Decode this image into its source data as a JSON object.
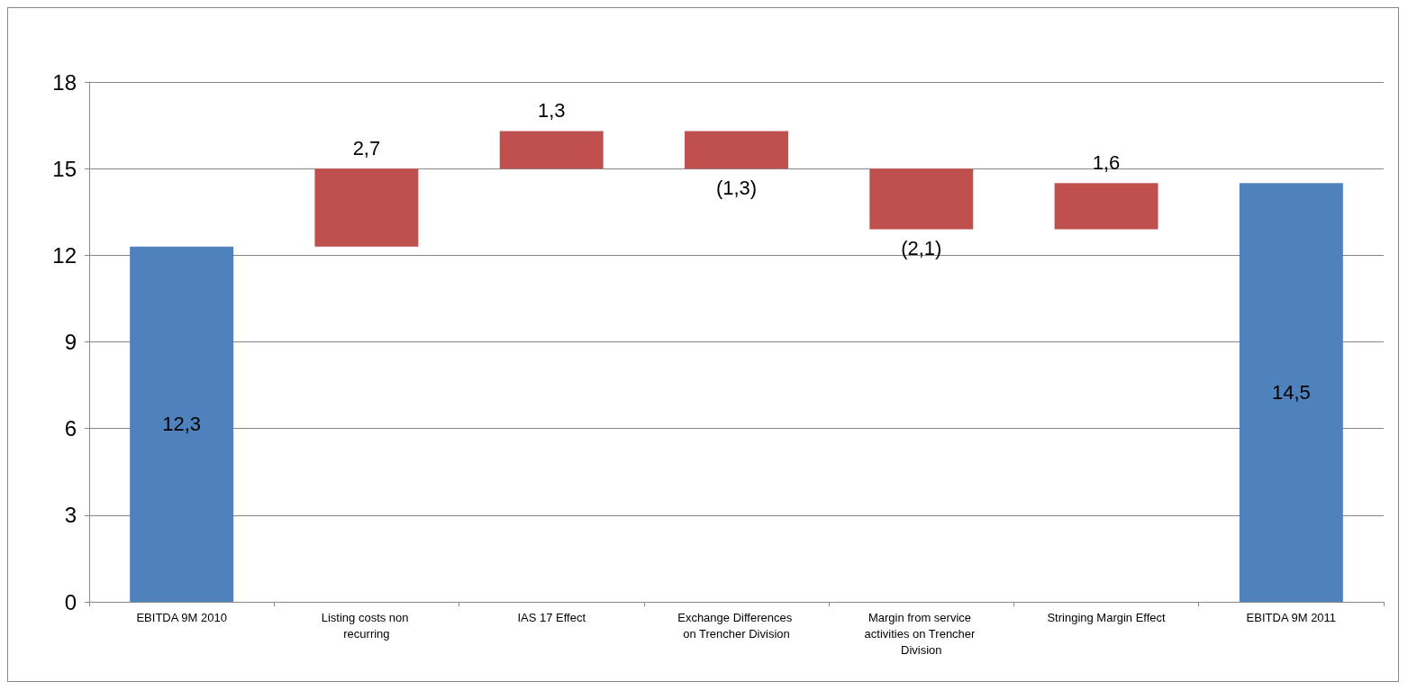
{
  "chart_data": {
    "type": "bar",
    "categories": [
      "EBITDA 9M 2010",
      "Listing costs non recurring",
      "IAS 17 Effect",
      "Exchange Differences on Trencher Division",
      "Margin from service activities on Trencher Division",
      "Stringing Margin Effect",
      "EBITDA 9M 2011"
    ],
    "base": [
      0,
      12.3,
      15,
      16.3,
      15,
      12.9,
      0
    ],
    "values": [
      12.3,
      2.7,
      1.3,
      -1.3,
      -2.1,
      1.6,
      14.5
    ],
    "colors": [
      "#4f81bd",
      "#c0504d",
      "#c0504d",
      "#c0504d",
      "#c0504d",
      "#c0504d",
      "#4f81bd"
    ],
    "value_labels": [
      "12,3",
      "2,7",
      "1,3",
      "(1,3)",
      "(2,1)",
      "1,6",
      "14,5"
    ],
    "ylim": [
      0,
      18
    ],
    "yticks": [
      0,
      3,
      6,
      9,
      12,
      15,
      18
    ],
    "grid": "y"
  }
}
